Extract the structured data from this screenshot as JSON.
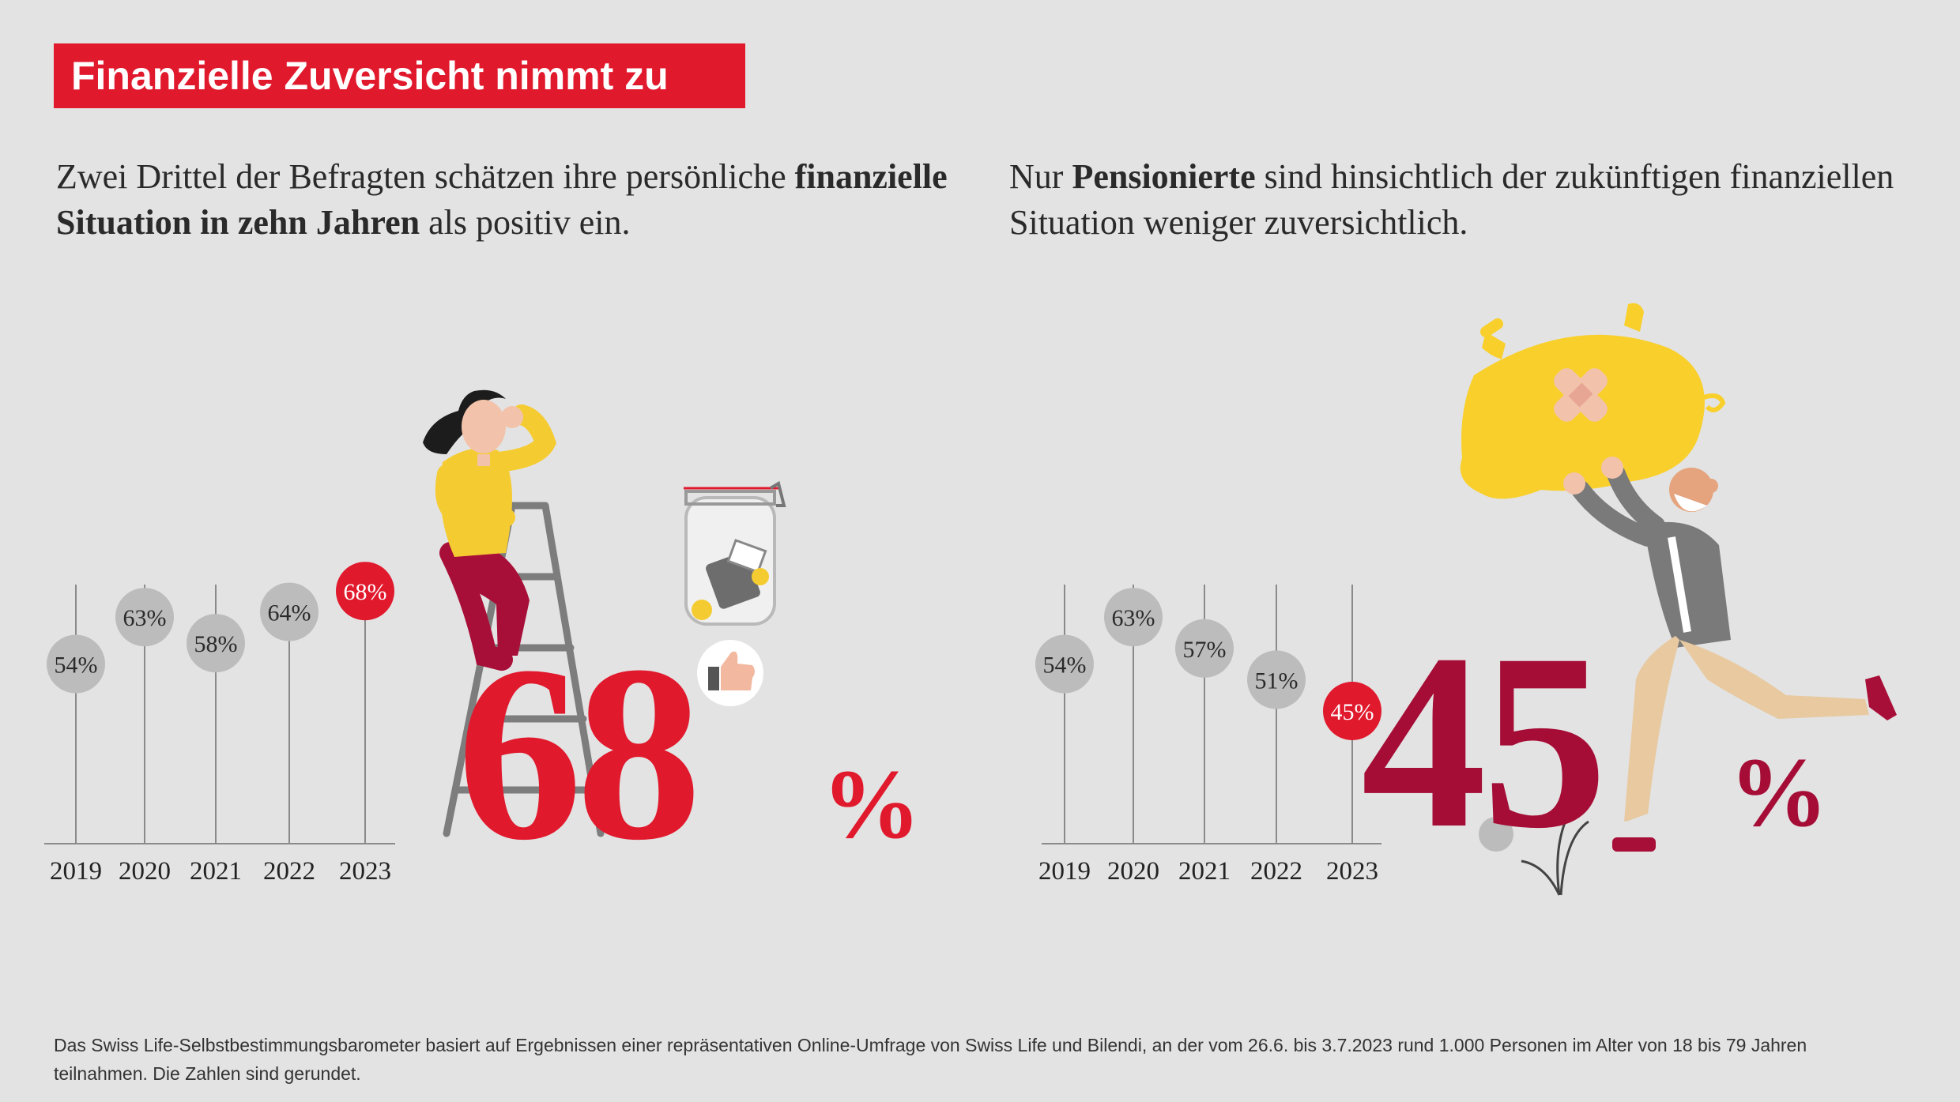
{
  "title": "Finanzielle Zuversicht nimmt zu",
  "colors": {
    "red": "#e1192d",
    "dark_red": "#a50d36",
    "grey_dot": "#bcbcbc",
    "axis": "#8a8a8a"
  },
  "left_panel": {
    "lead_part1": "Zwei Drittel der Befragten schätzen ihre persönliche ",
    "lead_bold": "finanzielle Situation in zehn Jahren",
    "lead_part2": " als positiv ein.",
    "big_value": "68",
    "percent_sign": "%"
  },
  "right_panel": {
    "lead_part1": "Nur ",
    "lead_bold": "Pensionierte",
    "lead_part2": " sind hinsichtlich der zukünftigen finanziellen Situation weniger zuversichtlich.",
    "big_value": "45",
    "percent_sign": "%"
  },
  "chart_data": [
    {
      "type": "lollipop",
      "categories": [
        "2019",
        "2020",
        "2021",
        "2022",
        "2023"
      ],
      "values": [
        54,
        63,
        58,
        64,
        68
      ],
      "labels": [
        "54%",
        "63%",
        "58%",
        "64%",
        "68%"
      ],
      "highlight_index": 4,
      "grid": false,
      "ylim": [
        0,
        80
      ]
    },
    {
      "type": "lollipop",
      "categories": [
        "2019",
        "2020",
        "2021",
        "2022",
        "2023"
      ],
      "values": [
        54,
        63,
        57,
        51,
        45
      ],
      "labels": [
        "54%",
        "63%",
        "57%",
        "51%",
        "45%"
      ],
      "highlight_index": 4,
      "grid": false,
      "ylim": [
        0,
        80
      ]
    }
  ],
  "footnote": "Das Swiss Life-Selbstbestimmungsbarometer basiert auf Ergebnissen einer repräsentativen Online-Umfrage von Swiss Life und Bilendi, an der vom 26.6. bis 3.7.2023 rund 1.000 Personen im Alter von 18 bis 79 Jahren teilnahmen. Die Zahlen sind gerundet."
}
